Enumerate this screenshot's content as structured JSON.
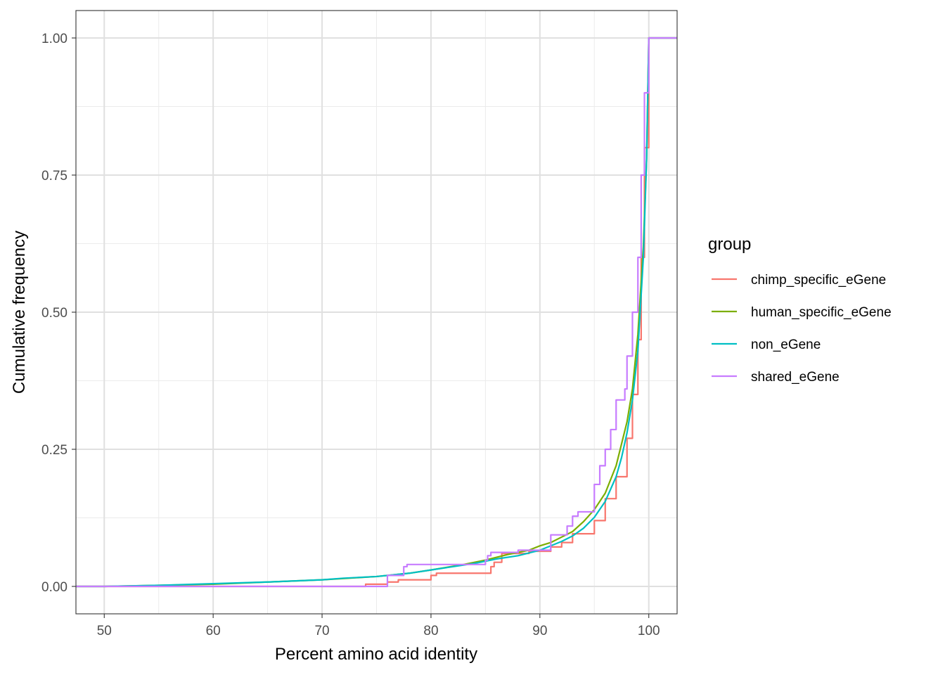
{
  "chart_data": {
    "type": "line",
    "subtype": "ecdf",
    "xlabel": "Percent amino acid identity",
    "ylabel": "Cumulative frequency",
    "xlim": [
      47.4,
      102.6
    ],
    "ylim": [
      -0.05,
      1.05
    ],
    "x_ticks": [
      50,
      60,
      70,
      80,
      90,
      100
    ],
    "x_tick_labels": [
      "50",
      "60",
      "70",
      "80",
      "90",
      "100"
    ],
    "y_ticks": [
      0,
      0.25,
      0.5,
      0.75,
      1.0
    ],
    "y_tick_labels": [
      "0.00",
      "0.25",
      "0.50",
      "0.75",
      "1.00"
    ],
    "grid": true,
    "legend": {
      "title": "group",
      "position": "right"
    },
    "series": [
      {
        "name": "chimp_specific_eGene",
        "color": "#F8766D",
        "step": true,
        "points": [
          [
            47.4,
            0
          ],
          [
            74,
            0
          ],
          [
            74,
            0.004
          ],
          [
            76,
            0.004
          ],
          [
            76,
            0.008
          ],
          [
            77,
            0.008
          ],
          [
            77,
            0.012
          ],
          [
            80,
            0.012
          ],
          [
            80,
            0.02
          ],
          [
            80.5,
            0.02
          ],
          [
            80.5,
            0.024
          ],
          [
            85.5,
            0.024
          ],
          [
            85.5,
            0.036
          ],
          [
            85.8,
            0.036
          ],
          [
            85.8,
            0.044
          ],
          [
            86.5,
            0.044
          ],
          [
            86.5,
            0.06
          ],
          [
            89,
            0.06
          ],
          [
            89,
            0.064
          ],
          [
            91,
            0.064
          ],
          [
            91,
            0.072
          ],
          [
            92,
            0.072
          ],
          [
            92,
            0.08
          ],
          [
            93,
            0.08
          ],
          [
            93,
            0.096
          ],
          [
            95,
            0.096
          ],
          [
            95,
            0.12
          ],
          [
            96,
            0.12
          ],
          [
            96,
            0.16
          ],
          [
            97,
            0.16
          ],
          [
            97,
            0.2
          ],
          [
            98,
            0.2
          ],
          [
            98,
            0.27
          ],
          [
            98.5,
            0.27
          ],
          [
            98.5,
            0.35
          ],
          [
            99,
            0.35
          ],
          [
            99,
            0.45
          ],
          [
            99.3,
            0.45
          ],
          [
            99.3,
            0.6
          ],
          [
            99.6,
            0.6
          ],
          [
            99.6,
            0.8
          ],
          [
            100,
            0.8
          ],
          [
            100,
            1
          ],
          [
            102.6,
            1
          ]
        ]
      },
      {
        "name": "human_specific_eGene",
        "color": "#7CAE00",
        "step": false,
        "points": [
          [
            47.4,
            0
          ],
          [
            50,
            0
          ],
          [
            55,
            0.002
          ],
          [
            60,
            0.004
          ],
          [
            65,
            0.008
          ],
          [
            70,
            0.012
          ],
          [
            75,
            0.018
          ],
          [
            78,
            0.024
          ],
          [
            80,
            0.03
          ],
          [
            83,
            0.04
          ],
          [
            85,
            0.048
          ],
          [
            87,
            0.058
          ],
          [
            89,
            0.066
          ],
          [
            90,
            0.074
          ],
          [
            91,
            0.08
          ],
          [
            92,
            0.09
          ],
          [
            93,
            0.1
          ],
          [
            94,
            0.118
          ],
          [
            95,
            0.14
          ],
          [
            96,
            0.17
          ],
          [
            97,
            0.22
          ],
          [
            97.5,
            0.26
          ],
          [
            98,
            0.3
          ],
          [
            98.5,
            0.36
          ],
          [
            99,
            0.46
          ],
          [
            99.5,
            0.62
          ],
          [
            99.8,
            0.78
          ],
          [
            100,
            1
          ],
          [
            102.6,
            1
          ]
        ]
      },
      {
        "name": "non_eGene",
        "color": "#00BFC4",
        "step": false,
        "points": [
          [
            47.4,
            0
          ],
          [
            50,
            0
          ],
          [
            55,
            0.002
          ],
          [
            60,
            0.005
          ],
          [
            65,
            0.008
          ],
          [
            70,
            0.012
          ],
          [
            72,
            0.015
          ],
          [
            75,
            0.018
          ],
          [
            78,
            0.024
          ],
          [
            80,
            0.03
          ],
          [
            82,
            0.036
          ],
          [
            84,
            0.042
          ],
          [
            86,
            0.05
          ],
          [
            88,
            0.056
          ],
          [
            90,
            0.066
          ],
          [
            91,
            0.074
          ],
          [
            92,
            0.082
          ],
          [
            93,
            0.092
          ],
          [
            94,
            0.106
          ],
          [
            95,
            0.126
          ],
          [
            96,
            0.155
          ],
          [
            97,
            0.2
          ],
          [
            97.5,
            0.235
          ],
          [
            98,
            0.28
          ],
          [
            98.5,
            0.34
          ],
          [
            99,
            0.43
          ],
          [
            99.5,
            0.6
          ],
          [
            99.8,
            0.78
          ],
          [
            100,
            1
          ],
          [
            102.6,
            1
          ]
        ]
      },
      {
        "name": "shared_eGene",
        "color": "#C77CFF",
        "step": true,
        "points": [
          [
            47.4,
            0
          ],
          [
            76,
            0
          ],
          [
            76,
            0.02
          ],
          [
            77.5,
            0.02
          ],
          [
            77.5,
            0.036
          ],
          [
            77.8,
            0.036
          ],
          [
            77.8,
            0.04
          ],
          [
            85,
            0.04
          ],
          [
            85,
            0.048
          ],
          [
            85.2,
            0.048
          ],
          [
            85.2,
            0.056
          ],
          [
            85.5,
            0.056
          ],
          [
            85.5,
            0.062
          ],
          [
            88,
            0.062
          ],
          [
            88,
            0.066
          ],
          [
            91,
            0.066
          ],
          [
            91,
            0.094
          ],
          [
            92.5,
            0.094
          ],
          [
            92.5,
            0.11
          ],
          [
            93,
            0.11
          ],
          [
            93,
            0.128
          ],
          [
            93.5,
            0.128
          ],
          [
            93.5,
            0.136
          ],
          [
            95,
            0.136
          ],
          [
            95,
            0.186
          ],
          [
            95.5,
            0.186
          ],
          [
            95.5,
            0.22
          ],
          [
            96,
            0.22
          ],
          [
            96,
            0.25
          ],
          [
            96.5,
            0.25
          ],
          [
            96.5,
            0.286
          ],
          [
            97,
            0.286
          ],
          [
            97,
            0.34
          ],
          [
            97.8,
            0.34
          ],
          [
            97.8,
            0.36
          ],
          [
            98,
            0.36
          ],
          [
            98,
            0.42
          ],
          [
            98.5,
            0.42
          ],
          [
            98.5,
            0.5
          ],
          [
            99,
            0.5
          ],
          [
            99,
            0.6
          ],
          [
            99.3,
            0.6
          ],
          [
            99.3,
            0.75
          ],
          [
            99.6,
            0.75
          ],
          [
            99.6,
            0.9
          ],
          [
            100,
            0.9
          ],
          [
            100,
            1
          ],
          [
            102.6,
            1
          ]
        ]
      }
    ]
  }
}
